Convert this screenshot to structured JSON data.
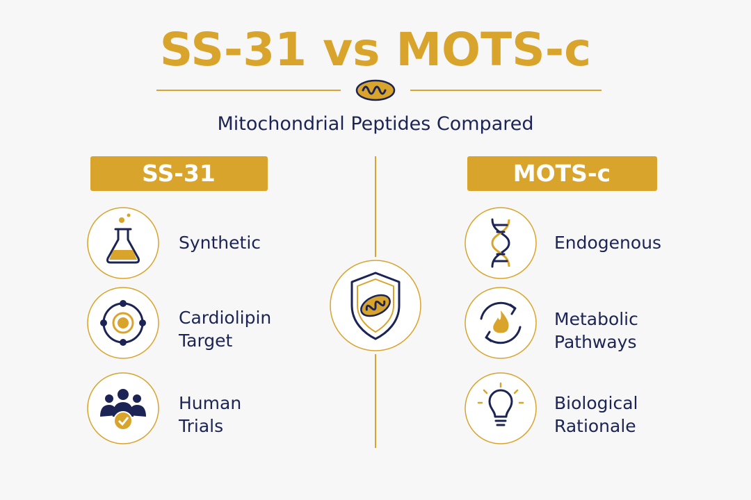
{
  "title": "SS-31 vs MOTS-c",
  "subtitle": "Mitochondrial Peptides Compared",
  "left": {
    "header": "SS-31",
    "items": [
      {
        "lines": [
          "Synthetic"
        ]
      },
      {
        "lines": [
          "Cardiolipin",
          "Target"
        ]
      },
      {
        "lines": [
          "Human",
          "Trials"
        ]
      }
    ]
  },
  "right": {
    "header": "MOTS-c",
    "items": [
      {
        "lines": [
          "Endogenous"
        ]
      },
      {
        "lines": [
          "Metabolic",
          "Pathways"
        ]
      },
      {
        "lines": [
          "Biological",
          "Rationale"
        ]
      }
    ]
  }
}
